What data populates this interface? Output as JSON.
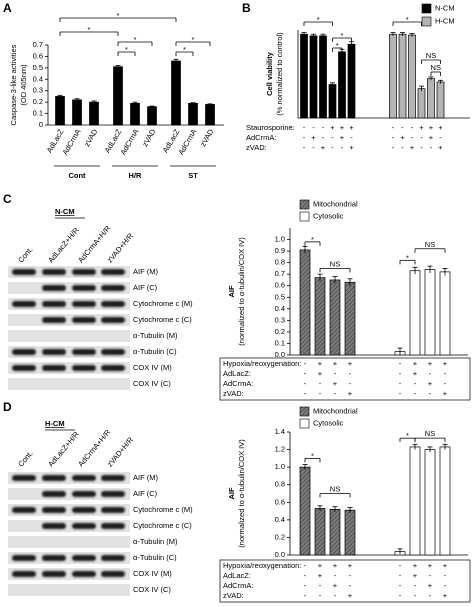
{
  "chart_data": [
    {
      "type": "bar",
      "panel": "A",
      "ylabel": [
        "Caspase-3-like activities",
        "(OD 405nm)"
      ],
      "categories": [
        "AdLacZ",
        "AdCrmA",
        "zVAD",
        "AdLacZ",
        "AdCrmA",
        "zVAD",
        "AdLacZ",
        "AdCrmA",
        "zVAD"
      ],
      "groups": [
        "Cont",
        "H/R",
        "ST"
      ],
      "values": [
        0.25,
        0.22,
        0.2,
        0.51,
        0.19,
        0.16,
        0.56,
        0.19,
        0.18
      ],
      "errors": [
        0.01,
        0.01,
        0.01,
        0.01,
        0.01,
        0.005,
        0.015,
        0.005,
        0.005
      ],
      "color": "#000000",
      "ylim": [
        0,
        0.7
      ],
      "yticks": [
        0,
        0.1,
        0.2,
        0.3,
        0.4,
        0.5,
        0.6,
        0.7
      ],
      "annotations": [
        "*",
        "*",
        "*",
        "*",
        "*",
        "*"
      ]
    },
    {
      "type": "bar",
      "panel": "B",
      "ylabel": [
        "Cell viability",
        "(% normalized to control)"
      ],
      "series": [
        {
          "name": "N-CM",
          "color": "#000000",
          "values": [
            100,
            98,
            98,
            40,
            79,
            88
          ],
          "errors": [
            2,
            2,
            2,
            2,
            3,
            3
          ]
        },
        {
          "name": "H-CM",
          "color": "#b4b4b4",
          "values": [
            100,
            100,
            99,
            35,
            47,
            43
          ],
          "errors": [
            2,
            2,
            2,
            3,
            2,
            2
          ]
        }
      ],
      "conditions": [
        {
          "label": "Staurosporine:",
          "signs": [
            "-",
            "-",
            "-",
            "+",
            "+",
            "+"
          ]
        },
        {
          "label": "AdCrmA:",
          "signs": [
            "-",
            "+",
            "-",
            "-",
            "+",
            "-"
          ]
        },
        {
          "label": "zVAD:",
          "signs": [
            "-",
            "-",
            "+",
            "-",
            "-",
            "+"
          ]
        }
      ],
      "ylim": [
        0,
        105
      ],
      "legend": "top-right",
      "annotations": [
        "*",
        "*",
        "*",
        "*",
        "NS",
        "NS"
      ]
    },
    {
      "type": "bar",
      "ylabel": [
        "AIF",
        "(normalized to α-tubulin/COX IV)"
      ],
      "series": [
        {
          "name": "Mitochondrial",
          "color": "#7a7a7a",
          "pattern": "hatch",
          "values": [
            0.91,
            0.67,
            0.65,
            0.63
          ],
          "errors": [
            0.03,
            0.03,
            0.03,
            0.03
          ]
        },
        {
          "name": "Cytosolic",
          "color": "#ffffff",
          "values": [
            0.03,
            0.73,
            0.74,
            0.72
          ],
          "errors": [
            0.03,
            0.03,
            0.03,
            0.03
          ]
        }
      ],
      "conditions": [
        {
          "label": "Hypoxia/reoxygenation:",
          "signs": [
            "-",
            "+",
            "+",
            "+"
          ]
        },
        {
          "label": "AdLacZ:",
          "signs": [
            "-",
            "+",
            "-",
            "-"
          ]
        },
        {
          "label": "AdCrmA:",
          "signs": [
            "-",
            "-",
            "+",
            "-"
          ]
        },
        {
          "label": "zVAD:",
          "signs": [
            "-",
            "-",
            "-",
            "+"
          ]
        }
      ],
      "ylim": [
        0,
        1.1
      ],
      "yticks": [
        {
          "value": 0,
          "label": "0.0"
        },
        0.1,
        0.2,
        0.3,
        0.4,
        0.5,
        0.6,
        0.7,
        0.8,
        0.9,
        {
          "value": 1,
          "label": "1.0"
        }
      ],
      "legend": "top-left",
      "annotations": [
        "*",
        "NS",
        "*",
        "NS"
      ]
    },
    {
      "type": "bar",
      "ylabel": [
        "AIF",
        "(normalized to α-tubulin/COX IV)"
      ],
      "series": [
        {
          "name": "Mitochondrial",
          "color": "#7a7a7a",
          "pattern": "hatch",
          "values": [
            1.0,
            0.53,
            0.52,
            0.51
          ],
          "errors": [
            0.03,
            0.03,
            0.03,
            0.03
          ]
        },
        {
          "name": "Cytosolic",
          "color": "#ffffff",
          "values": [
            0.04,
            1.23,
            1.2,
            1.23
          ],
          "errors": [
            0.03,
            0.03,
            0.03,
            0.03
          ]
        }
      ],
      "conditions": [
        {
          "label": "Hypoxia/reoxygenation:",
          "signs": [
            "-",
            "+",
            "+",
            "+"
          ]
        },
        {
          "label": "AdLacZ:",
          "signs": [
            "-",
            "+",
            "-",
            "-"
          ]
        },
        {
          "label": "AdCrmA:",
          "signs": [
            "-",
            "-",
            "+",
            "-"
          ]
        },
        {
          "label": "zVAD:",
          "signs": [
            "-",
            "-",
            "-",
            "+"
          ]
        }
      ],
      "ylim": [
        0,
        1.4
      ],
      "yticks": [
        {
          "value": 0,
          "label": "0.0"
        },
        0.2,
        0.4,
        0.6,
        0.8,
        {
          "value": 1,
          "label": "1.0"
        },
        1.2,
        1.4
      ],
      "legend": "top-left",
      "annotations": [
        "*",
        "NS",
        "*",
        "NS"
      ]
    }
  ],
  "blots": [
    {
      "panel": "C",
      "title": "N-CM",
      "lanes": [
        "Cont.",
        "AdLacZ+H/R",
        "AdCrmA+H/R",
        "zVAD+H/R"
      ],
      "rows": [
        "AIF (M)",
        "AIF (C)",
        "Cytochrome c (M)",
        "Cytochrome c (C)",
        "α-Tubulin (M)",
        "α-Tubulin (C)",
        "COX IV (M)",
        "COX IV (C)"
      ]
    },
    {
      "panel": "D",
      "title": "H-CM",
      "lanes": [
        "Cont.",
        "AdLacZ+H/R",
        "AdCrmA+H/R",
        "zVAD+H/R"
      ],
      "rows": [
        "AIF (M)",
        "AIF (C)",
        "Cytochrome c (M)",
        "Cytochrome c (C)",
        "α-Tubulin (M)",
        "α-Tubulin (C)",
        "COX IV (M)",
        "COX IV (C)"
      ]
    }
  ]
}
